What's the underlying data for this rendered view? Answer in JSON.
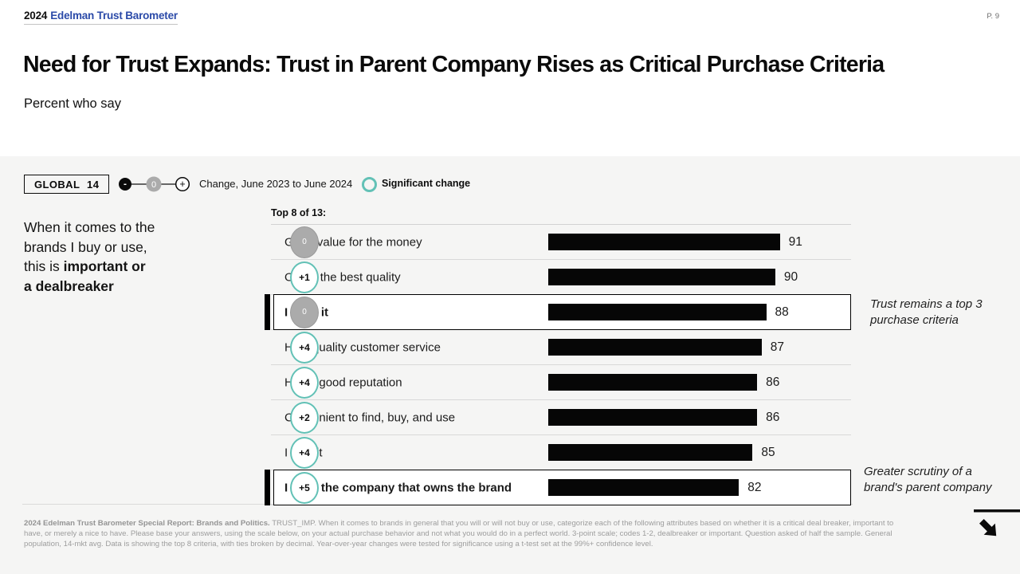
{
  "header": {
    "brand_year": "2024",
    "brand_name": "Edelman Trust Barometer",
    "page_number": "P. 9",
    "title": "Need for Trust Expands: Trust in Parent Company Rises as Critical Purchase Criteria",
    "subtitle": "Percent who say"
  },
  "controls": {
    "scope_label": "GLOBAL 14",
    "scale_minus": "-",
    "scale_zero": "0",
    "scale_plus": "+",
    "change_label": "Change, June 2023 to June 2024",
    "significant_label": "Significant change"
  },
  "statement": {
    "line1": "When it comes to the",
    "line2": "brands I buy or use,",
    "line3_pre": "this is ",
    "line3_bold": "important or",
    "line4_bold": "a dealbreaker"
  },
  "chart_data": {
    "type": "bar",
    "title": "Top 8 of 13:",
    "orientation": "horizontal",
    "xlim": [
      40,
      93
    ],
    "grid": false,
    "legend_position": "top",
    "categories": [
      "Good value for the money",
      "Offers the best quality",
      "I trust it",
      "High quality customer service",
      "Has a good reputation",
      "Convenient to find, buy, and use",
      "I love it",
      "I trust the company that owns the brand"
    ],
    "values": [
      91,
      90,
      88,
      87,
      86,
      86,
      85,
      82
    ],
    "rows": [
      {
        "label": "Good value for the money",
        "value": 91,
        "change": "0",
        "significant": false,
        "highlight": false
      },
      {
        "label": "Offers the best quality",
        "value": 90,
        "change": "+1",
        "significant": true,
        "highlight": false
      },
      {
        "label": "I trust it",
        "value": 88,
        "change": "0",
        "significant": false,
        "highlight": true
      },
      {
        "label": "High quality customer service",
        "value": 87,
        "change": "+4",
        "significant": true,
        "highlight": false
      },
      {
        "label": "Has a good reputation",
        "value": 86,
        "change": "+4",
        "significant": true,
        "highlight": false
      },
      {
        "label": "Convenient to find, buy, and use",
        "value": 86,
        "change": "+2",
        "significant": true,
        "highlight": false
      },
      {
        "label": "I love it",
        "value": 85,
        "change": "+4",
        "significant": true,
        "highlight": false
      },
      {
        "label": "I trust the company that owns the brand",
        "value": 82,
        "change": "+5",
        "significant": true,
        "highlight": true
      }
    ]
  },
  "annotations": {
    "top": "Trust remains a top 3 purchase criteria",
    "bottom": "Greater scrutiny of a brand's parent company"
  },
  "footer": {
    "source_bold": "2024 Edelman Trust Barometer Special Report: Brands and Politics.",
    "body": " TRUST_IMP.  When it comes to brands in general that you will or will not buy or use, categorize each of the following attributes based on whether it is a critical deal breaker, important to have, or merely a nice to have. Please base your answers, using the scale below, on your actual purchase behavior and not what you would do in a perfect world. 3-point scale; codes 1-2, dealbreaker or important.  Question asked of half the sample. General population, 14-mkt avg. Data is showing the top 8 criteria, with ties broken by decimal.  Year-over-year changes were tested for significance using a t-test set at the 99%+ confidence level."
  },
  "colors": {
    "brand_blue": "#2b4aa8",
    "significant_teal": "#62c1b6",
    "bar_black": "#060606",
    "badge_gray": "#ababab",
    "main_background": "#f5f5f4"
  },
  "icons": {
    "next_arrow": "arrow-southeast"
  }
}
